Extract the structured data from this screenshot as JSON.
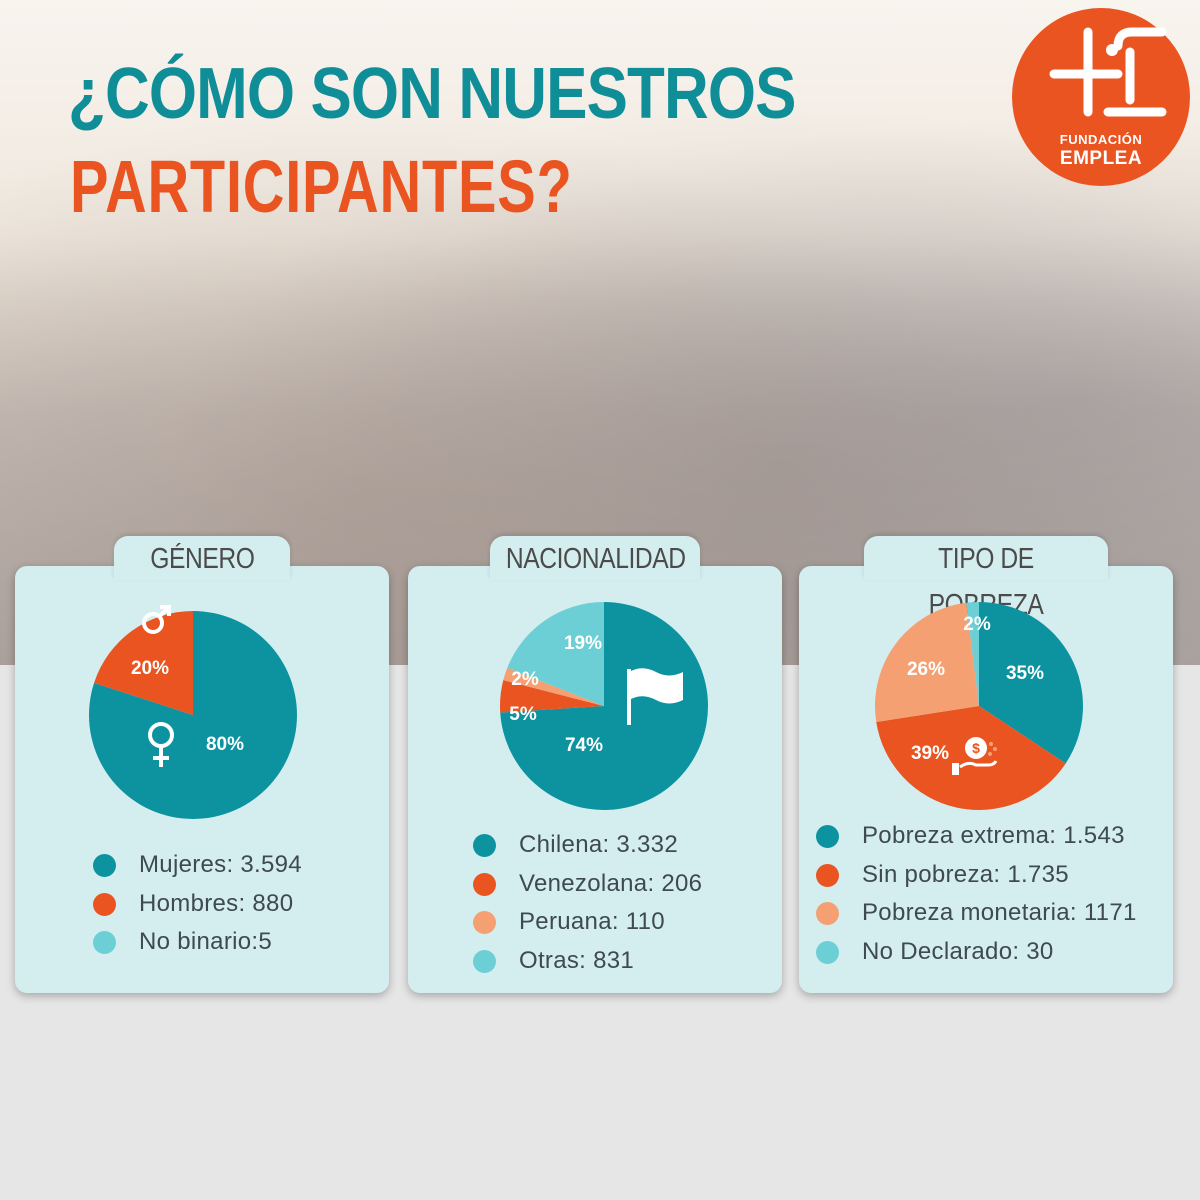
{
  "header": {
    "title": "¿CÓMO SON NUESTROS",
    "subtitle": "PARTICIPANTES?",
    "logo_line1": "FUNDACIÓN",
    "logo_line2": "EMPLEA"
  },
  "colors": {
    "teal": "#0d93a0",
    "orange": "#ea5420",
    "light_orange": "#f5a072",
    "light_teal": "#6dcfd6",
    "title_teal": "#0f8e98",
    "card_bg": "#d4eef0"
  },
  "chart_data": [
    {
      "type": "pie",
      "title": "GÉNERO",
      "slices": [
        {
          "label": "Mujeres",
          "value": 80,
          "display": "80%",
          "count_text": "Mujeres: 3.594",
          "color": "#0d93a0",
          "icon": "female-symbol-icon"
        },
        {
          "label": "Hombres",
          "value": 20,
          "display": "20%",
          "count_text": "Hombres: 880",
          "color": "#ea5420",
          "icon": "male-symbol-icon"
        }
      ],
      "legend": [
        {
          "text": "Mujeres: 3.594",
          "color": "#0d93a0"
        },
        {
          "text": "Hombres: 880",
          "color": "#ea5420"
        },
        {
          "text": "No binario:5",
          "color": "#6dcfd6"
        }
      ]
    },
    {
      "type": "pie",
      "title": "NACIONALIDAD",
      "slices": [
        {
          "label": "Chilena",
          "value": 74,
          "display": "74%",
          "color": "#0d93a0",
          "icon": "flag-icon"
        },
        {
          "label": "Venezolana",
          "value": 5,
          "display": "5%",
          "color": "#ea5420"
        },
        {
          "label": "Peruana",
          "value": 2,
          "display": "2%",
          "color": "#f5a072"
        },
        {
          "label": "Otras",
          "value": 19,
          "display": "19%",
          "color": "#6dcfd6"
        }
      ],
      "legend": [
        {
          "text": "Chilena: 3.332",
          "color": "#0d93a0"
        },
        {
          "text": "Venezolana: 206",
          "color": "#ea5420"
        },
        {
          "text": "Peruana: 110",
          "color": "#f5a072"
        },
        {
          "text": "Otras: 831",
          "color": "#6dcfd6"
        }
      ]
    },
    {
      "type": "pie",
      "title": "TIPO DE POBREZA",
      "slices": [
        {
          "label": "Pobreza extrema",
          "value": 35,
          "display": "35%",
          "color": "#0d93a0"
        },
        {
          "label": "Sin pobreza",
          "value": 39,
          "display": "39%",
          "color": "#ea5420",
          "icon": "money-hand-icon"
        },
        {
          "label": "Pobreza monetaria",
          "value": 26,
          "display": "26%",
          "color": "#f5a072"
        },
        {
          "label": "No Declarado",
          "value": 2,
          "display": "2%",
          "color": "#6dcfd6"
        }
      ],
      "legend": [
        {
          "text": "Pobreza extrema: 1.543",
          "color": "#0d93a0"
        },
        {
          "text": "Sin pobreza: 1.735",
          "color": "#ea5420"
        },
        {
          "text": "Pobreza monetaria: 1171",
          "color": "#f5a072"
        },
        {
          "text": "No Declarado: 30",
          "color": "#6dcfd6"
        }
      ]
    }
  ]
}
